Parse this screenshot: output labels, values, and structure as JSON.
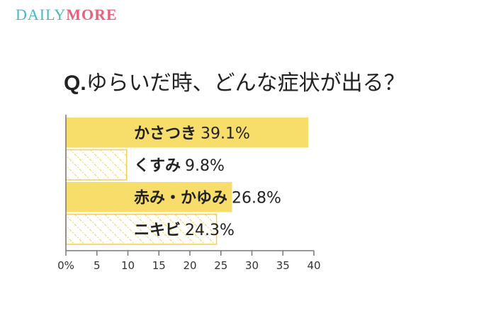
{
  "logo": {
    "part1": "DAILY",
    "part2": "MORE"
  },
  "question": {
    "prefix": "Q.",
    "text": "ゆらいだ時、どんな症状が出る？"
  },
  "colors": {
    "solid": "#f7de6b",
    "hatch": "#f2cf55",
    "axis": "#777777",
    "text": "#222222"
  },
  "chart_data": {
    "type": "bar",
    "orientation": "horizontal",
    "categories": [
      "かさつき",
      "くすみ",
      "赤み・かゆみ",
      "ニキビ"
    ],
    "values": [
      39.1,
      9.8,
      26.8,
      24.3
    ],
    "value_labels": [
      "39.1%",
      "9.8%",
      "26.8%",
      "24.3%"
    ],
    "fill_styles": [
      "solid",
      "hatched",
      "solid",
      "hatched"
    ],
    "xlim": [
      0,
      40
    ],
    "xticks": [
      0,
      5,
      10,
      15,
      20,
      25,
      30,
      35,
      40
    ],
    "xtick_labels": [
      "0%",
      "5",
      "10",
      "15",
      "20",
      "25",
      "30",
      "35",
      "40"
    ],
    "grid": false
  }
}
